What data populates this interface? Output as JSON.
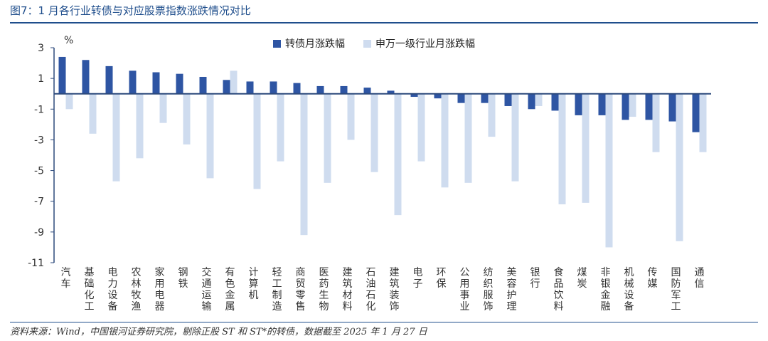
{
  "title": "图7：1 月各行业转债与对应股票指数涨跌情况对比",
  "source": "资料来源：Wind，中国银河证券研究院，剔除正股 ST 和 ST*的转债，数据截至 2025 年 1 月 27 日",
  "colors": {
    "series1": "#2e55a3",
    "series2": "#cfdcef",
    "axis": "#2d4a7c",
    "text": "#333333",
    "accent": "#1f4e8c"
  },
  "chart_data": {
    "type": "bar",
    "title": "",
    "ylabel": "%",
    "xlabel": "",
    "ylim": [
      -11,
      3
    ],
    "yticks": [
      3,
      1,
      -1,
      -3,
      -5,
      -7,
      -9,
      -11
    ],
    "legend_position": "top-center",
    "grid": false,
    "categories": [
      "汽车",
      "基础化工",
      "电力设备",
      "农林牧渔",
      "家用电器",
      "钢铁",
      "交通运输",
      "有色金属",
      "计算机",
      "轻工制造",
      "商贸零售",
      "医药生物",
      "建筑材料",
      "石油石化",
      "建筑装饰",
      "电子",
      "环保",
      "公用事业",
      "纺织服饰",
      "美容护理",
      "银行",
      "食品饮料",
      "煤炭",
      "非银金融",
      "机械设备",
      "传媒",
      "国防军工",
      "通信"
    ],
    "series": [
      {
        "name": "转债月涨跌幅",
        "values": [
          2.4,
          2.2,
          1.8,
          1.5,
          1.4,
          1.3,
          1.1,
          0.9,
          0.8,
          0.8,
          0.7,
          0.5,
          0.5,
          0.4,
          0.2,
          -0.2,
          -0.3,
          -0.6,
          -0.6,
          -0.8,
          -1.0,
          -1.1,
          -1.4,
          -1.4,
          -1.7,
          -1.7,
          -1.8,
          -2.5
        ]
      },
      {
        "name": "申万一级行业月涨跌幅",
        "values": [
          -1.0,
          -2.6,
          -5.7,
          -4.2,
          -1.9,
          -3.3,
          -5.5,
          1.5,
          -6.2,
          -4.4,
          -9.2,
          -5.8,
          -3.0,
          -5.1,
          -7.9,
          -4.4,
          -6.1,
          -5.8,
          -2.8,
          -5.7,
          -0.8,
          -7.2,
          -7.1,
          -10.0,
          -1.5,
          -3.8,
          -9.6,
          -3.8
        ]
      }
    ]
  }
}
